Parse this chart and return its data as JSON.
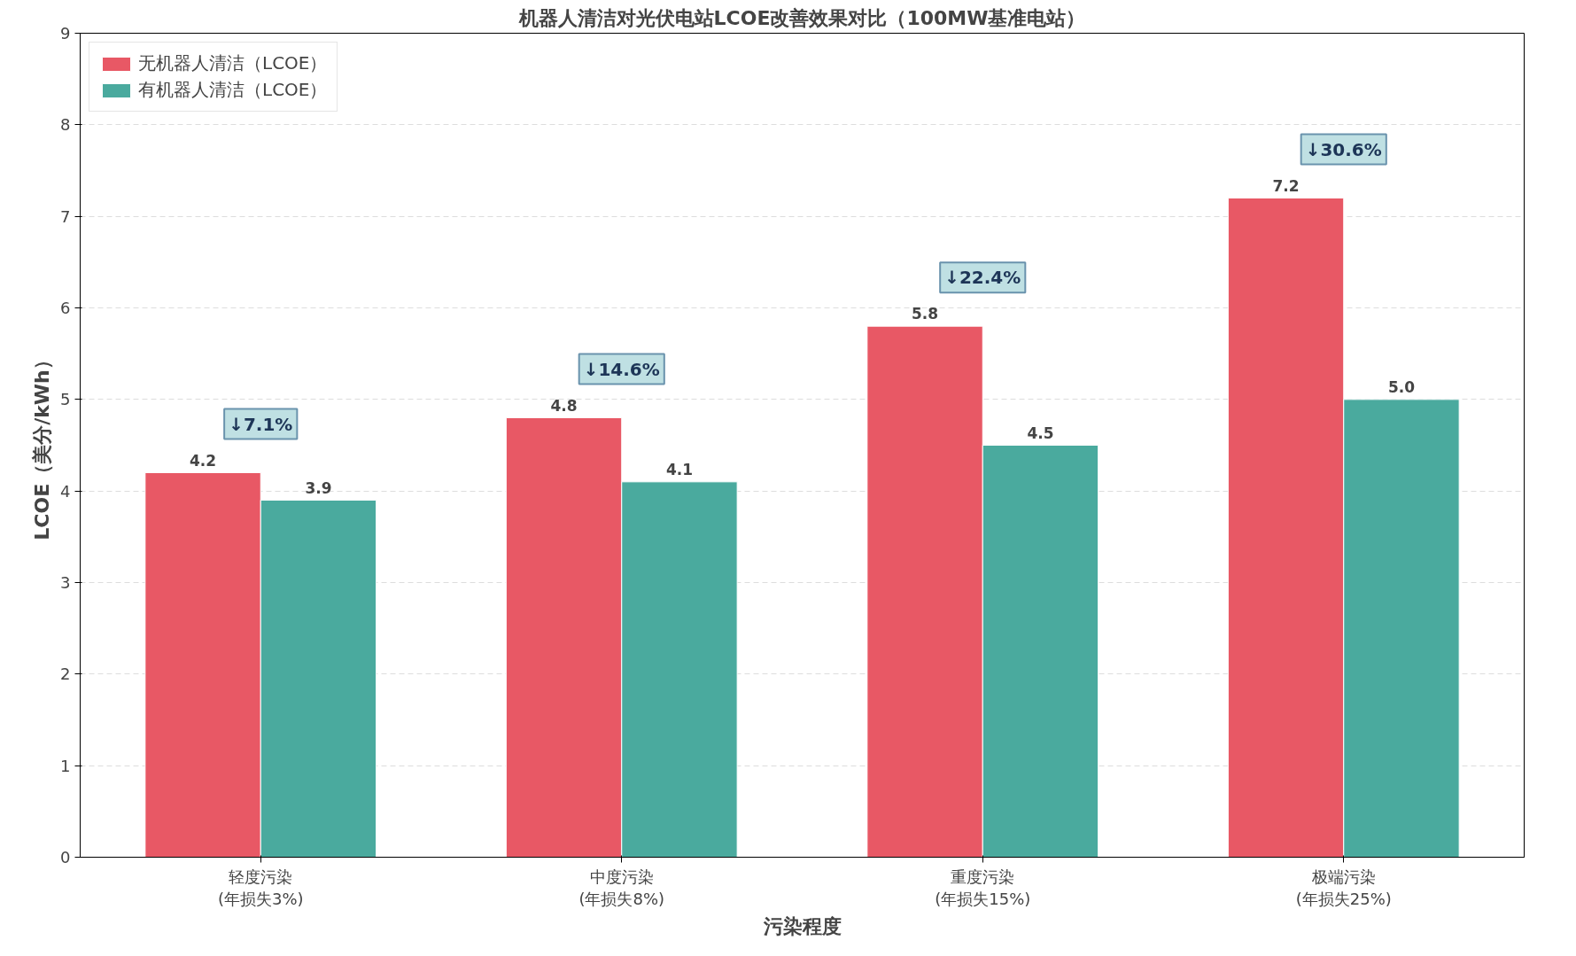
{
  "chart_data": {
    "type": "bar",
    "title": "机器人清洁对光伏电站LCOE改善效果对比（100MW基准电站）",
    "xlabel": "污染程度",
    "ylabel": "LCOE（美分/kWh）",
    "categories": [
      "轻度污染\n(年损失3%)",
      "中度污染\n(年损失8%)",
      "重度污染\n(年损失15%)",
      "极端污染\n(年损失25%)"
    ],
    "series": [
      {
        "name": "无机器人清洁（LCOE）",
        "color": "#e85865",
        "values": [
          4.2,
          4.8,
          5.8,
          7.2
        ],
        "value_labels": [
          "4.2",
          "4.8",
          "5.8",
          "7.2"
        ]
      },
      {
        "name": "有机器人清洁（LCOE）",
        "color": "#4aaa9e",
        "values": [
          3.9,
          4.1,
          4.5,
          5.0
        ],
        "value_labels": [
          "3.9",
          "4.1",
          "4.5",
          "5.0"
        ]
      }
    ],
    "ylim": [
      0,
      9
    ],
    "yticks": [
      0,
      1,
      2,
      3,
      4,
      5,
      6,
      7,
      8,
      9
    ],
    "grid": "y",
    "legend": "top left",
    "annotations": [
      "↓7.1%",
      "↓14.6%",
      "↓22.4%",
      "↓30.6%"
    ]
  }
}
